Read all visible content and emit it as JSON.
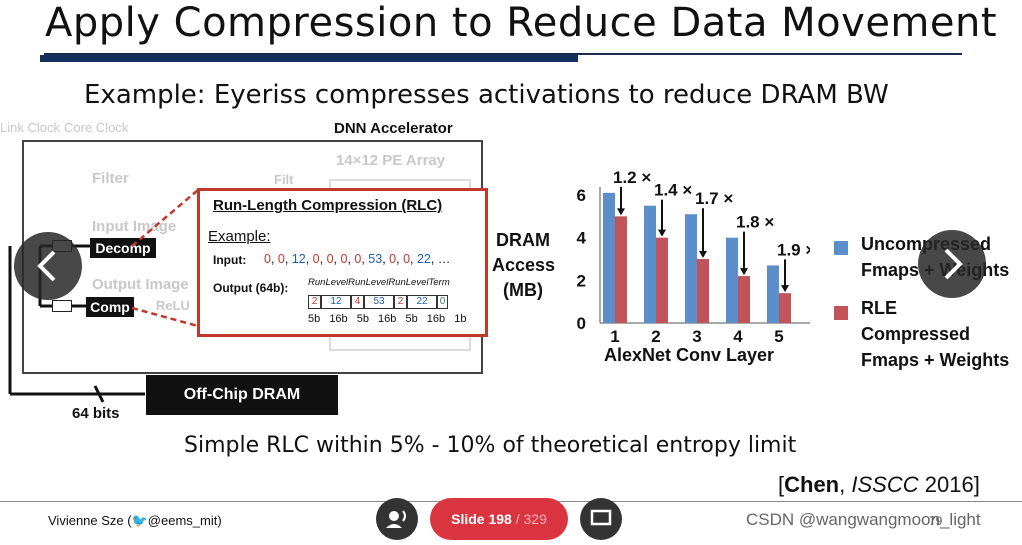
{
  "slide": {
    "title": "Apply Compression to Reduce Data Movement",
    "subtitle": "Example: Eyeriss compresses activations to reduce DRAM BW",
    "footnote": "Simple RLC within 5% - 10% of theoretical entropy limit",
    "citation_author": "Chen",
    "citation_venue": "ISSCC",
    "citation_year": "2016",
    "author": "Vivienne Sze (",
    "twitter_handle": "@eems_mit)",
    "page_num": "79"
  },
  "diagram": {
    "link_clock": "Link Clock",
    "core_clock": "Core Clock",
    "dnn_accel": "DNN Accelerator",
    "pe_array": "14×12 PE Array",
    "filter": "Filter",
    "filt": "Filt",
    "input_image": "Input Image",
    "output_image": "Output Image",
    "relu": "ReLU",
    "decomp": "Decomp",
    "comp": "Comp",
    "dram": "Off-Chip DRAM",
    "bits": "64 bits",
    "rlc_title": "Run-Length Compression (RLC)",
    "example_label": "Example:",
    "input_label": "Input:",
    "input_values": [
      "0",
      "0",
      "12",
      "0",
      "0",
      "0",
      "0",
      "53",
      "0",
      "0",
      "22",
      "…"
    ],
    "output_label": "Output (64b):",
    "out_headers": [
      "Run",
      "Level",
      "Run",
      "Level",
      "Run",
      "Level",
      "Term"
    ],
    "out_values": [
      "2",
      "12",
      "4",
      "53",
      "2",
      "22",
      "0"
    ],
    "out_bits": [
      "5b",
      "16b",
      "5b",
      "16b",
      "5b",
      "16b",
      "1b"
    ],
    "colors": {
      "run": "#c0392b",
      "level": "#1f5fb0",
      "term": "#2e8b57",
      "accent": "#c0392b"
    }
  },
  "chart_data": {
    "type": "bar",
    "xlabel": "AlexNet Conv Layer",
    "ylabel": "DRAM Access (MB)",
    "categories": [
      "1",
      "2",
      "3",
      "4",
      "5"
    ],
    "ylim": [
      0,
      6
    ],
    "yticks": [
      "0",
      "2",
      "4",
      "6"
    ],
    "series": [
      {
        "name": "Uncompressed Fmaps + Weights",
        "values": [
          6.1,
          5.5,
          5.1,
          4.0,
          2.7
        ],
        "color": "#5b8fc9"
      },
      {
        "name": "RLE Compressed Fmaps + Weights",
        "values": [
          5.0,
          4.0,
          3.0,
          2.2,
          1.4
        ],
        "color": "#c0545a"
      }
    ],
    "annotations": [
      "1.2 ×",
      "1.4 ×",
      "1.7 ×",
      "1.8 ×",
      "1.9 ×"
    ],
    "legend": "right",
    "grid": false
  },
  "controls": {
    "slide_label": "Slide",
    "slide_current": "198",
    "slide_total": "/ 329",
    "watermark": "CSDN @wangwangmoon_light"
  },
  "icons": [
    "chevron-left-icon",
    "chevron-right-icon",
    "voice-icon",
    "screen-icon",
    "bird-icon"
  ]
}
